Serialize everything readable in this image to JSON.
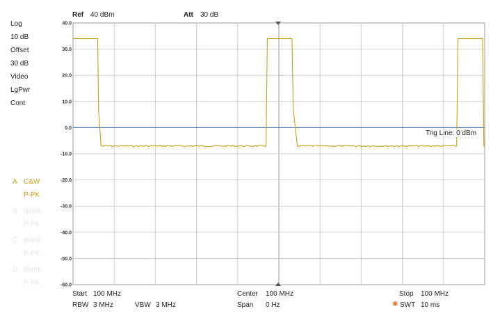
{
  "header": {
    "ref_label": "Ref",
    "ref_value": "40 dBm",
    "att_label": "Att",
    "att_value": "30 dB"
  },
  "settings": {
    "items": [
      "Log",
      "10 dB",
      "Offset",
      "30 dB",
      "Video",
      "LgPwr",
      "Cont"
    ]
  },
  "traces": [
    {
      "letter": "A",
      "name": "C&W",
      "detector": "P-PK",
      "active": true
    },
    {
      "letter": "B",
      "name": "Blank",
      "detector": "P-PK",
      "active": false
    },
    {
      "letter": "C",
      "name": "Blank",
      "detector": "P-PK",
      "active": false
    },
    {
      "letter": "D",
      "name": "Blank",
      "detector": "P-PK",
      "active": false
    }
  ],
  "trig_line": "Trig Line: 0 dBm",
  "footer": {
    "start_label": "Start",
    "start_value": "100 MHz",
    "center_label": "Center",
    "center_value": "100 MHz",
    "stop_label": "Stop",
    "stop_value": "100 MHz",
    "rbw_label": "RBW",
    "rbw_value": "3 MHz",
    "vbw_label": "VBW",
    "vbw_value": "3 MHz",
    "span_label": "Span",
    "span_value": "0 Hz",
    "swt_label": "SWT",
    "swt_value": "10 ms"
  },
  "colors": {
    "trace": "#c9a015",
    "trig_line": "#3d6fa8",
    "grid": "#cfcfcf",
    "swt_marker": "#e2792c"
  },
  "chart_data": {
    "type": "line",
    "title": "",
    "xlabel": "",
    "ylabel": "",
    "x_unit": "ms",
    "xlim": [
      0,
      10
    ],
    "ylim": [
      -60,
      40
    ],
    "yticks": [
      40.0,
      30.0,
      20.0,
      10.0,
      0.0,
      -10.0,
      -20.0,
      -30.0,
      -40.0,
      -50.0,
      -60.0
    ],
    "ytick_labels": [
      "40.0",
      "30.0",
      "20.0",
      "10.0",
      "0.0",
      "-10.0",
      "-20.0",
      "-30.0",
      "-40.0",
      "-50.0",
      "-60.0"
    ],
    "grid": true,
    "trig_level": 0,
    "series": [
      {
        "x": [
          0,
          0.6,
          0.62,
          0.68,
          4.69,
          4.72,
          5.32,
          5.35,
          5.45,
          9.32,
          9.35,
          9.95,
          9.98,
          10
        ],
        "y": [
          34,
          34,
          7,
          -7,
          -7,
          34,
          34,
          7,
          -7,
          -7,
          34,
          34,
          -7,
          -7
        ]
      }
    ]
  }
}
